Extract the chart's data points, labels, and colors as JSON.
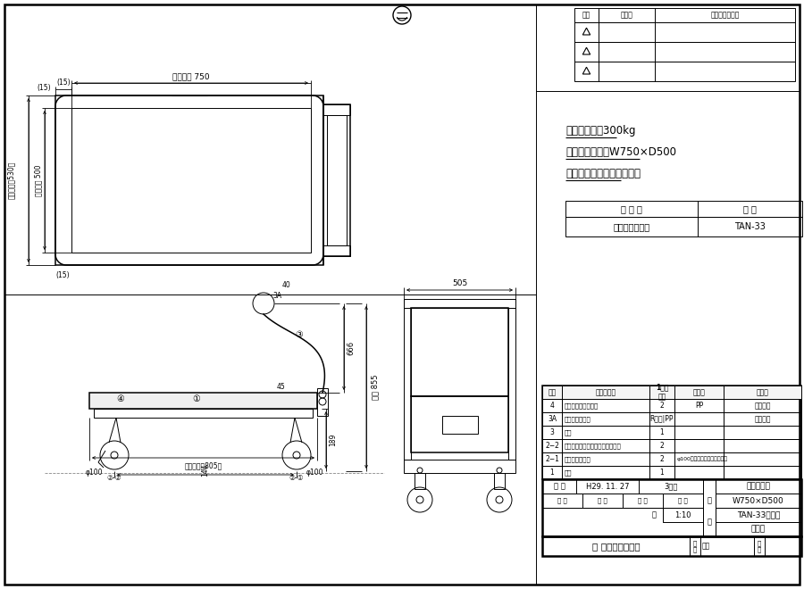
{
  "bg_color": "#ffffff",
  "spec_line1": "均等耗荷重：300kg",
  "spec_line2": "荆台有効寿法：W750×D500",
  "spec_line3": "キャスターは前後入替可能",
  "paint_color_label": "塗 装 色",
  "part_number_label": "品 番",
  "paint_color_value": "サカエグリーン",
  "part_number_value": "TAN-33",
  "change_header1": "符号",
  "change_header2": "日　付",
  "change_header3": "変　更　内　容",
  "荷台寸法_label": "荆台寿法 750",
  "外形寸法_label": "外形寿法（530）",
  "荷台寸法500_label": "荆台寿法 500",
  "外形寸法805_label": "外形寿法（805）",
  "全高855_label": "全高 855",
  "bom_rows": [
    {
      "no": "4",
      "name": "コーナークッション",
      "qty": "2",
      "material": "PP",
      "note": "グレー色"
    },
    {
      "no": "3A",
      "name": "取手ブラケット",
      "qty": "R属化|PP",
      "material": "",
      "note": "グレー色"
    },
    {
      "no": "3",
      "name": "取手",
      "qty": "1",
      "material": "",
      "note": ""
    },
    {
      "no": "2−2",
      "name": "自在キャスター（ストッパー付）",
      "qty": "2",
      "material": "",
      "note": ""
    },
    {
      "no": "2−1",
      "name": "固定キャスター",
      "qty": "2",
      "material": "φ100ゴム車（スチール金具）",
      "note": ""
    },
    {
      "no": "1",
      "name": "本体",
      "qty": "1",
      "material": "",
      "note": ""
    }
  ],
  "bom_header_no": "品番",
  "bom_header_name": "部　品　名",
  "bom_header_qty": "1台分\n数量",
  "bom_header_mat": "材　質",
  "bom_header_note": "備　考",
  "tb_created": "作 成",
  "tb_date": "H29. 11. 27",
  "tb_method": "3角法",
  "tb_approval": "承 認",
  "tb_design": "設 計",
  "tb_draw": "製 図",
  "tb_scale_label": "尺 度",
  "tb_direction": "西",
  "tb_scale": "1:10",
  "tb_name_label": "名",
  "tb_title_label": "称",
  "tb_title1": "特製四輪車",
  "tb_title2": "W750×D500",
  "tb_title3": "TAN-33タイプ",
  "tb_title4": "外観図",
  "company": "株式会社サカエ",
  "zu_ban": "図番",
  "yo_ban": "葉番"
}
